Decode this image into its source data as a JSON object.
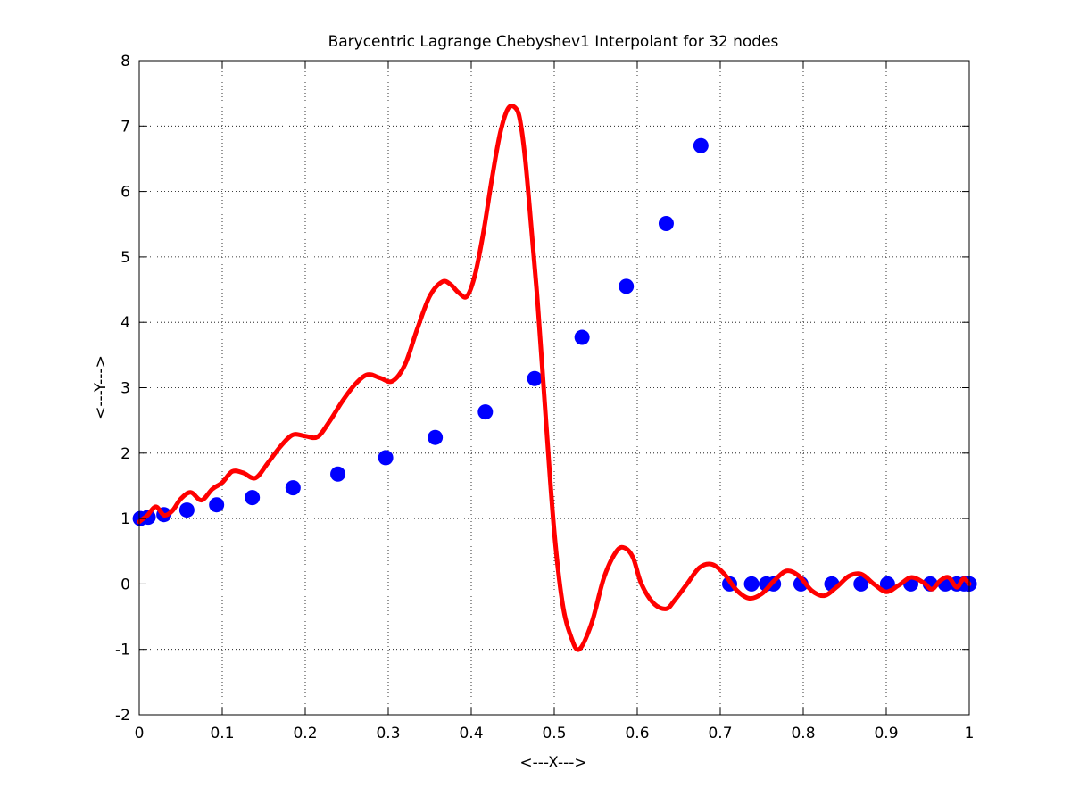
{
  "chart_data": {
    "type": "line",
    "title": "Barycentric Lagrange Chebyshev1 Interpolant for 32 nodes",
    "xlabel": "<---X--->",
    "ylabel": "<---Y--->",
    "xlim": [
      0,
      1
    ],
    "ylim": [
      -2,
      8
    ],
    "x_ticks": [
      0,
      0.1,
      0.2,
      0.3,
      0.4,
      0.5,
      0.6,
      0.7,
      0.8,
      0.9,
      1
    ],
    "x_tick_labels": [
      "0",
      "0.1",
      "0.2",
      "0.3",
      "0.4",
      "0.5",
      "0.6",
      "0.7",
      "0.8",
      "0.9",
      "1"
    ],
    "y_ticks": [
      -2,
      -1,
      0,
      1,
      2,
      3,
      4,
      5,
      6,
      7,
      8
    ],
    "y_tick_labels": [
      "-2",
      "-1",
      "0",
      "1",
      "2",
      "3",
      "4",
      "5",
      "6",
      "7",
      "8"
    ],
    "grid": true,
    "series": [
      {
        "kind": "scatter",
        "color": "#0000ff",
        "x": [
          0.0012,
          0.0108,
          0.0297,
          0.0574,
          0.0932,
          0.1362,
          0.1853,
          0.2393,
          0.2969,
          0.3566,
          0.417,
          0.4764,
          0.5335,
          0.5868,
          0.6349,
          0.6767,
          0.7113,
          0.7377,
          0.7555,
          0.7642,
          0.7972,
          0.8344,
          0.8696,
          0.9015,
          0.9296,
          0.953,
          0.9712,
          0.9849,
          0.9938,
          0.9988,
          0.9999,
          1.0
        ],
        "y": [
          1.0,
          1.02,
          1.06,
          1.13,
          1.21,
          1.32,
          1.47,
          1.68,
          1.93,
          2.24,
          2.63,
          3.14,
          3.77,
          4.55,
          5.51,
          6.7,
          0,
          0,
          0,
          0,
          0,
          0,
          0,
          0,
          0,
          0,
          0,
          0,
          0,
          0,
          0,
          0
        ]
      },
      {
        "kind": "line",
        "color": "#ff0000",
        "x": [
          0.0,
          0.005,
          0.01,
          0.02,
          0.03,
          0.04,
          0.05,
          0.062,
          0.075,
          0.088,
          0.1,
          0.112,
          0.125,
          0.14,
          0.155,
          0.17,
          0.185,
          0.2,
          0.215,
          0.23,
          0.245,
          0.26,
          0.275,
          0.29,
          0.305,
          0.32,
          0.335,
          0.35,
          0.365,
          0.375,
          0.385,
          0.395,
          0.405,
          0.415,
          0.425,
          0.435,
          0.445,
          0.455,
          0.46,
          0.465,
          0.47,
          0.48,
          0.49,
          0.5,
          0.51,
          0.52,
          0.53,
          0.545,
          0.56,
          0.575,
          0.585,
          0.595,
          0.605,
          0.62,
          0.635,
          0.645,
          0.66,
          0.675,
          0.69,
          0.705,
          0.72,
          0.735,
          0.75,
          0.765,
          0.78,
          0.795,
          0.81,
          0.825,
          0.84,
          0.855,
          0.87,
          0.885,
          0.9,
          0.915,
          0.93,
          0.945,
          0.955,
          0.965,
          0.975,
          0.985,
          0.993,
          1.0
        ],
        "y": [
          0.95,
          1.0,
          1.05,
          1.18,
          1.05,
          1.12,
          1.3,
          1.4,
          1.28,
          1.45,
          1.55,
          1.72,
          1.7,
          1.62,
          1.85,
          2.1,
          2.28,
          2.26,
          2.25,
          2.5,
          2.8,
          3.05,
          3.2,
          3.15,
          3.1,
          3.35,
          3.9,
          4.4,
          4.62,
          4.58,
          4.45,
          4.4,
          4.75,
          5.4,
          6.2,
          6.9,
          7.28,
          7.25,
          7.0,
          6.5,
          5.8,
          4.3,
          2.5,
          0.8,
          -0.3,
          -0.8,
          -1.0,
          -0.6,
          0.1,
          0.5,
          0.55,
          0.4,
          0.0,
          -0.3,
          -0.38,
          -0.25,
          0.0,
          0.25,
          0.3,
          0.15,
          -0.1,
          -0.22,
          -0.15,
          0.05,
          0.2,
          0.12,
          -0.1,
          -0.18,
          -0.05,
          0.12,
          0.15,
          0.0,
          -0.12,
          -0.02,
          0.1,
          0.02,
          -0.08,
          0.05,
          0.1,
          -0.05,
          0.08,
          0.0
        ]
      }
    ]
  }
}
